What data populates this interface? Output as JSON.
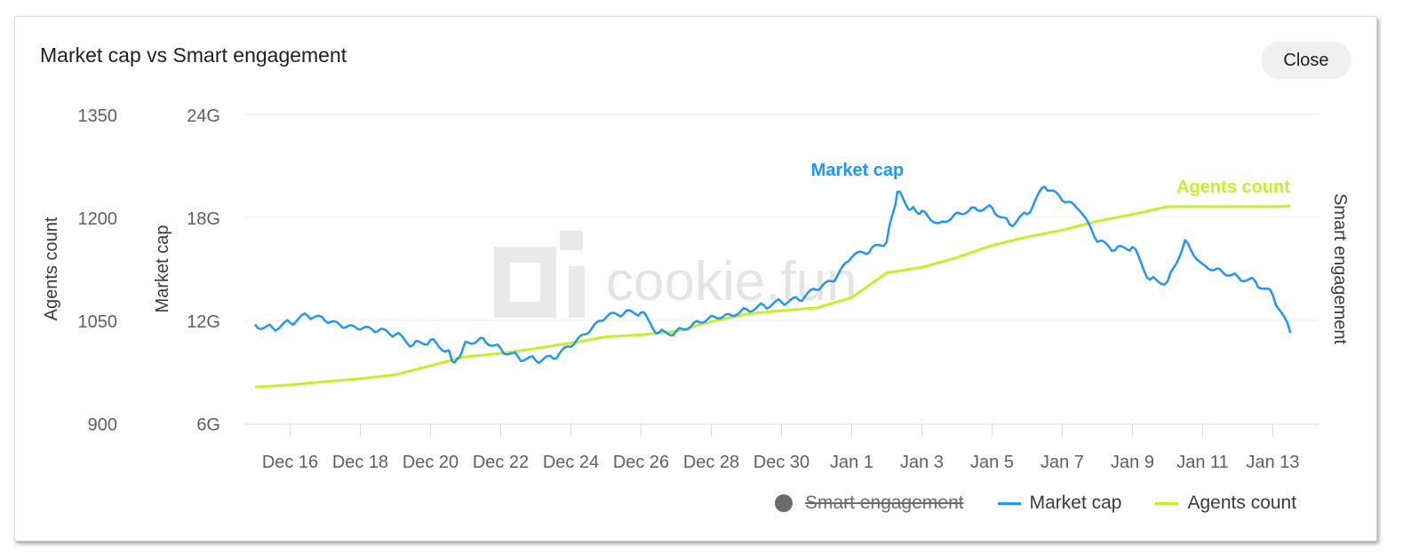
{
  "title": "Market cap vs Smart engagement",
  "close_label": "Close",
  "watermark": "cookie.fun",
  "legend": {
    "smart_engagement": "Smart engagement",
    "market_cap": "Market cap",
    "agents_count": "Agents count"
  },
  "annotations": {
    "market_cap": "Market cap",
    "agents_count": "Agents count"
  },
  "colors": {
    "market_cap": "#2196f3",
    "agents_count": "#c6ef2b",
    "smart_engagement": "#6b6b6b"
  },
  "chart_data": {
    "type": "line",
    "xlabel": "",
    "x_ticks": [
      "Dec 16",
      "Dec 18",
      "Dec 20",
      "Dec 22",
      "Dec 24",
      "Dec 26",
      "Dec 28",
      "Dec 30",
      "Jan 1",
      "Jan 3",
      "Jan 5",
      "Jan 7",
      "Jan 9",
      "Jan 11",
      "Jan 13"
    ],
    "left_axis": {
      "label": "Agents count",
      "ticks": [
        "1350",
        "1200",
        "1050",
        "900"
      ],
      "range": [
        900,
        1350
      ]
    },
    "second_axis": {
      "label": "Market cap",
      "ticks": [
        "24G",
        "18G",
        "12G",
        "6G"
      ],
      "range": [
        6,
        24
      ],
      "unit": "G"
    },
    "right_axis": {
      "label": "Smart engagement"
    },
    "grid": true,
    "legend_position": "bottom-right",
    "series": [
      {
        "name": "Market cap",
        "unit": "G",
        "points": [
          [
            "Dec 15",
            11.8
          ],
          [
            "Dec 15.5",
            11.6
          ],
          [
            "Dec 16",
            11.9
          ],
          [
            "Dec 16.5",
            12.3
          ],
          [
            "Dec 17",
            12.0
          ],
          [
            "Dec 17.5",
            11.6
          ],
          [
            "Dec 18",
            11.5
          ],
          [
            "Dec 18.5",
            11.4
          ],
          [
            "Dec 19",
            11.2
          ],
          [
            "Dec 19.5",
            10.6
          ],
          [
            "Dec 20",
            10.9
          ],
          [
            "Dec 20.5",
            10.3
          ],
          [
            "Dec 20.7",
            9.6
          ],
          [
            "Dec 21",
            10.8
          ],
          [
            "Dec 21.5",
            11.0
          ],
          [
            "Dec 22",
            10.4
          ],
          [
            "Dec 22.5",
            9.9
          ],
          [
            "Dec 23",
            9.7
          ],
          [
            "Dec 23.5",
            9.8
          ],
          [
            "Dec 24",
            10.5
          ],
          [
            "Dec 24.5",
            11.3
          ],
          [
            "Dec 25",
            12.2
          ],
          [
            "Dec 25.5",
            12.4
          ],
          [
            "Dec 26",
            12.5
          ],
          [
            "Dec 26.5",
            11.3
          ],
          [
            "Dec 27",
            11.4
          ],
          [
            "Dec 27.5",
            11.9
          ],
          [
            "Dec 28",
            12.3
          ],
          [
            "Dec 28.5",
            12.4
          ],
          [
            "Dec 29",
            12.7
          ],
          [
            "Dec 29.5",
            12.9
          ],
          [
            "Dec 30",
            13.1
          ],
          [
            "Dec 30.5",
            13.2
          ],
          [
            "Dec 31",
            13.8
          ],
          [
            "Dec 31.5",
            14.3
          ],
          [
            "Jan 1",
            15.7
          ],
          [
            "Jan 1.5",
            16.0
          ],
          [
            "Jan 2",
            16.6
          ],
          [
            "Jan 2.3",
            19.5
          ],
          [
            "Jan 2.7",
            18.5
          ],
          [
            "Jan 3",
            18.4
          ],
          [
            "Jan 3.5",
            17.7
          ],
          [
            "Jan 4",
            18.3
          ],
          [
            "Jan 4.5",
            18.6
          ],
          [
            "Jan 5",
            18.6
          ],
          [
            "Jan 5.5",
            17.6
          ],
          [
            "Jan 6",
            18.2
          ],
          [
            "Jan 6.5",
            19.8
          ],
          [
            "Jan 7",
            19.0
          ],
          [
            "Jan 7.5",
            18.4
          ],
          [
            "Jan 8",
            16.6
          ],
          [
            "Jan 8.5",
            16.1
          ],
          [
            "Jan 9",
            16.3
          ],
          [
            "Jan 9.5",
            14.4
          ],
          [
            "Jan 10",
            14.3
          ],
          [
            "Jan 10.5",
            16.7
          ],
          [
            "Jan 11",
            15.3
          ],
          [
            "Jan 11.5",
            15.0
          ],
          [
            "Jan 12",
            14.6
          ],
          [
            "Jan 12.5",
            14.3
          ],
          [
            "Jan 13",
            13.5
          ],
          [
            "Jan 13.5",
            11.3
          ]
        ]
      },
      {
        "name": "Agents count",
        "points": [
          [
            "Dec 15",
            954
          ],
          [
            "Dec 16",
            957
          ],
          [
            "Dec 17",
            962
          ],
          [
            "Dec 18",
            966
          ],
          [
            "Dec 19",
            972
          ],
          [
            "Dec 20",
            985
          ],
          [
            "Dec 21",
            998
          ],
          [
            "Dec 22",
            1003
          ],
          [
            "Dec 23",
            1010
          ],
          [
            "Dec 24",
            1018
          ],
          [
            "Dec 25",
            1027
          ],
          [
            "Dec 26",
            1030
          ],
          [
            "Dec 27",
            1035
          ],
          [
            "Dec 28",
            1049
          ],
          [
            "Dec 29",
            1060
          ],
          [
            "Dec 30",
            1065
          ],
          [
            "Dec 31",
            1069
          ],
          [
            "Jan 1",
            1084
          ],
          [
            "Jan 2",
            1120
          ],
          [
            "Jan 3",
            1128
          ],
          [
            "Jan 4",
            1142
          ],
          [
            "Jan 5",
            1160
          ],
          [
            "Jan 6",
            1172
          ],
          [
            "Jan 7",
            1182
          ],
          [
            "Jan 8",
            1195
          ],
          [
            "Jan 9",
            1205
          ],
          [
            "Jan 10",
            1216
          ],
          [
            "Jan 11",
            1216
          ],
          [
            "Jan 12",
            1216
          ],
          [
            "Jan 13",
            1216
          ],
          [
            "Jan 13.5",
            1217
          ]
        ]
      }
    ]
  }
}
